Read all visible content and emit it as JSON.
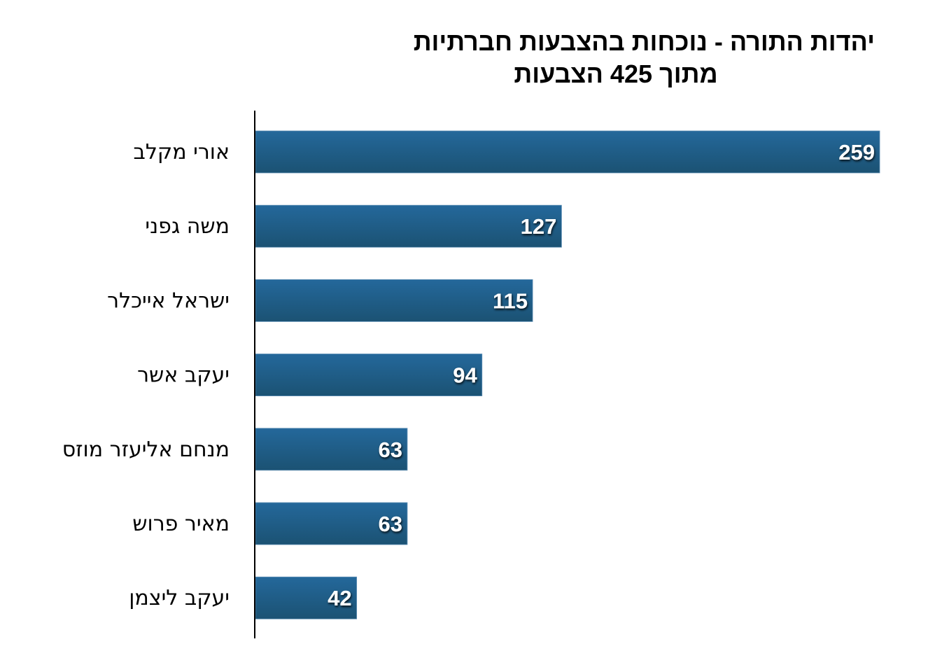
{
  "chart_data": {
    "type": "bar",
    "orientation": "horizontal",
    "title": "יהדות התורה - נוכחות בהצבעות חברתיות",
    "subtitle": "מתוך 425 הצבעות",
    "categories": [
      "אורי מקלב",
      "משה גפני",
      "ישראל אייכלר",
      "יעקב אשר",
      "מנחם אליעזר מוזס",
      "מאיר פרוש",
      "יעקב ליצמן"
    ],
    "values": [
      259,
      127,
      115,
      94,
      63,
      63,
      42
    ],
    "xlim": [
      0,
      259
    ],
    "grid": false,
    "legend": "none",
    "data_labels": true,
    "colors": {
      "bar_top": "#24679a",
      "bar_bottom": "#1b5274",
      "label": "#ffffff"
    }
  }
}
